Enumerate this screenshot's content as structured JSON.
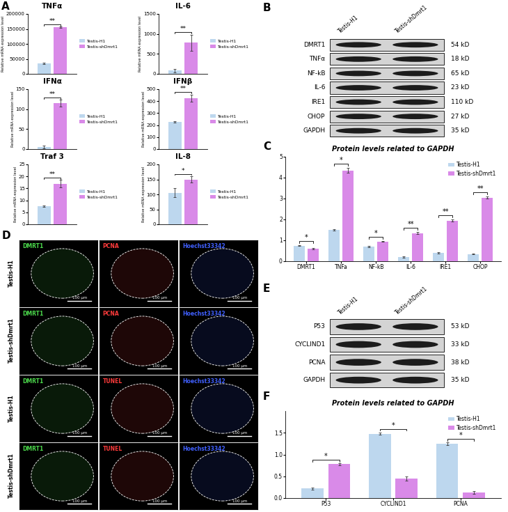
{
  "chart_data": [
    {
      "panel": "A",
      "type": "bar",
      "title": "TNFα",
      "y_label": "Relative mRNA expression level",
      "categories": [
        null
      ],
      "series": [
        {
          "name": "Testis-H1",
          "color": "#bdd7ee",
          "values": [
            35000
          ],
          "errors": [
            3000
          ]
        },
        {
          "name": "Testis-shDmrt1",
          "color": "#d98ae8",
          "values": [
            155000
          ],
          "errors": [
            2000
          ]
        }
      ],
      "significance": [
        "**"
      ],
      "ylim": [
        0,
        200000
      ],
      "yticks": [
        0,
        50000,
        100000,
        150000,
        200000
      ],
      "legend": "right"
    },
    {
      "type": "bar",
      "title": "IL-6",
      "y_label": "Relative mRNA expression level",
      "categories": [
        null
      ],
      "series": [
        {
          "name": "Testis-H1",
          "color": "#bdd7ee",
          "values": [
            80
          ],
          "errors": [
            50
          ]
        },
        {
          "name": "Testis-shDmrt1",
          "color": "#d98ae8",
          "values": [
            780
          ],
          "errors": [
            200
          ]
        }
      ],
      "significance": [
        "**"
      ],
      "ylim": [
        0,
        1500
      ],
      "yticks": [
        0,
        500,
        1000,
        1500
      ],
      "legend": "right"
    },
    {
      "type": "bar",
      "title": "IFNα",
      "y_label": "Relative mRNA expression level",
      "categories": [
        null
      ],
      "series": [
        {
          "name": "Testis-H1",
          "color": "#bdd7ee",
          "values": [
            5
          ],
          "errors": [
            3
          ]
        },
        {
          "name": "Testis-shDmrt1",
          "color": "#d98ae8",
          "values": [
            115
          ],
          "errors": [
            8
          ]
        }
      ],
      "significance": [
        "**"
      ],
      "ylim": [
        0,
        150
      ],
      "yticks": [
        0,
        50,
        100,
        150
      ],
      "legend": "right"
    },
    {
      "type": "bar",
      "title": "IFNβ",
      "y_label": "Relative mRNA expression level",
      "categories": [
        null
      ],
      "series": [
        {
          "name": "Testis-H1",
          "color": "#bdd7ee",
          "values": [
            225
          ],
          "errors": [
            5
          ]
        },
        {
          "name": "Testis-shDmrt1",
          "color": "#d98ae8",
          "values": [
            425
          ],
          "errors": [
            30
          ]
        }
      ],
      "significance": [
        "**"
      ],
      "ylim": [
        0,
        500
      ],
      "yticks": [
        0,
        100,
        200,
        300,
        400,
        500
      ],
      "legend": "right"
    },
    {
      "type": "bar",
      "title": "Traf 3",
      "y_label": "Relative mRNA expression level",
      "categories": [
        null
      ],
      "series": [
        {
          "name": "Testis-H1",
          "color": "#bdd7ee",
          "values": [
            7.5
          ],
          "errors": [
            0.3
          ]
        },
        {
          "name": "Testis-shDmrt1",
          "color": "#d98ae8",
          "values": [
            17
          ],
          "errors": [
            1.5
          ]
        }
      ],
      "significance": [
        "**"
      ],
      "ylim": [
        0,
        25
      ],
      "yticks": [
        0,
        5,
        10,
        15,
        20,
        25
      ],
      "legend": "right"
    },
    {
      "type": "bar",
      "title": "IL-8",
      "y_label": "Relative mRNA expression level",
      "categories": [
        null
      ],
      "series": [
        {
          "name": "Testis-H1",
          "color": "#bdd7ee",
          "values": [
            105
          ],
          "errors": [
            15
          ]
        },
        {
          "name": "Testis-shDmrt1",
          "color": "#d98ae8",
          "values": [
            150
          ],
          "errors": [
            10
          ]
        }
      ],
      "significance": [
        "*"
      ],
      "ylim": [
        0,
        200
      ],
      "yticks": [
        0,
        50,
        100,
        150,
        200
      ],
      "legend": "right"
    },
    {
      "panel": "C",
      "type": "bar",
      "title": "Protein levels related to GAPDH",
      "categories": [
        "DMRT1",
        "TNFa",
        "NF-kB",
        "IL-6",
        "IRE1",
        "CHOP"
      ],
      "series": [
        {
          "name": "Testis-H1",
          "color": "#bdd7ee",
          "values": [
            0.75,
            1.5,
            0.7,
            0.2,
            0.4,
            0.35
          ],
          "errors": [
            0.03,
            0.03,
            0.03,
            0.02,
            0.03,
            0.03
          ]
        },
        {
          "name": "Testis-shDmrt1",
          "color": "#d98ae8",
          "values": [
            0.6,
            4.35,
            0.95,
            1.35,
            1.95,
            3.05
          ],
          "errors": [
            0.03,
            0.12,
            0.03,
            0.05,
            0.05,
            0.05
          ]
        }
      ],
      "significance": [
        "*",
        "*",
        "*",
        "**",
        "**",
        "**"
      ],
      "ylim": [
        0,
        5
      ],
      "yticks": [
        0,
        1,
        2,
        3,
        4,
        5
      ],
      "legend": "upper right"
    },
    {
      "panel": "F",
      "type": "bar",
      "title": "Protein levels related to GAPDH",
      "categories": [
        "P53",
        "CYCLIND1",
        "PCNA"
      ],
      "series": [
        {
          "name": "Testis-H1",
          "color": "#bdd7ee",
          "values": [
            0.22,
            1.48,
            1.25
          ],
          "errors": [
            0.02,
            0.03,
            0.03
          ]
        },
        {
          "name": "Testis-shDmrt1",
          "color": "#d98ae8",
          "values": [
            0.78,
            0.45,
            0.13
          ],
          "errors": [
            0.02,
            0.05,
            0.03
          ]
        }
      ],
      "significance": [
        "*",
        "*",
        "*"
      ],
      "ylim": [
        0,
        2.0
      ],
      "yticks": [
        {
          "value": 0,
          "label": "0.0"
        },
        {
          "value": 0.5,
          "label": "0.5"
        },
        {
          "value": 1.0,
          "label": "1.0"
        },
        {
          "value": 1.5,
          "label": "1.5"
        }
      ],
      "legend": "upper right"
    }
  ],
  "blots": [
    {
      "panel": "B",
      "lanes": [
        "Testis-H1",
        "Testis-shDmrt1"
      ],
      "rows": [
        {
          "label": "DMRT1",
          "size": "54 kD"
        },
        {
          "label": "TNFα",
          "size": "18 kD"
        },
        {
          "label": "NF-kB",
          "size": "65 kD"
        },
        {
          "label": "IL-6",
          "size": "23 kD"
        },
        {
          "label": "IRE1",
          "size": "110 kD"
        },
        {
          "label": "CHOP",
          "size": "27 kD"
        },
        {
          "label": "GAPDH",
          "size": "35 kD"
        }
      ]
    },
    {
      "panel": "E",
      "lanes": [
        "Testis-H1",
        "Testis-shDmrt1"
      ],
      "rows": [
        {
          "label": "P53",
          "size": "53 kD"
        },
        {
          "label": "CYCLIND1",
          "size": "33 kD"
        },
        {
          "label": "PCNA",
          "size": "38 kD"
        },
        {
          "label": "GAPDH",
          "size": "35 kD"
        }
      ]
    }
  ],
  "images": {
    "panel": "D",
    "scale_bar": "100 μm",
    "colors": [
      "#4cd94c",
      "#ff3b3b",
      "#4060ff"
    ],
    "rows": [
      {
        "label": "Testis-H1",
        "stains": [
          "DMRT1",
          "PCNA",
          "Hoechst33342"
        ]
      },
      {
        "label": "Testis-shDmrt1",
        "stains": [
          "DMRT1",
          "PCNA",
          "Hoechst33342"
        ]
      },
      {
        "label": "Testis-H1",
        "stains": [
          "DMRT1",
          "TUNEL",
          "Hoechst33342"
        ]
      },
      {
        "label": "Testis-shDmrt1",
        "stains": [
          "DMRT1",
          "TUNEL",
          "Hoechst33342"
        ]
      }
    ]
  }
}
